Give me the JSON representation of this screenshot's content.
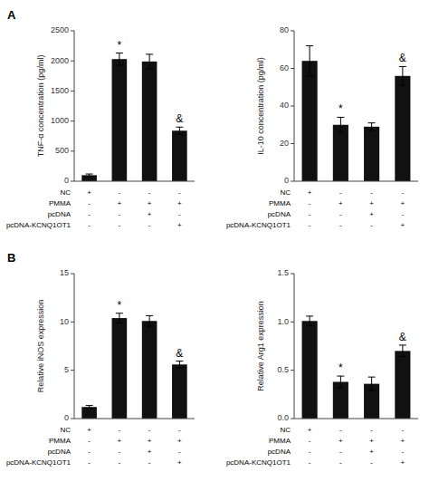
{
  "chart_data": [
    {
      "type": "bar",
      "panel_label": "A",
      "ylabel": "TNF-α concentration (pg/ml)",
      "categories": [
        null,
        null,
        null,
        null
      ],
      "values": [
        100,
        2030,
        1990,
        840
      ],
      "errors": [
        20,
        100,
        120,
        60
      ],
      "color": "#111111",
      "ylim": [
        0,
        2500
      ],
      "yticks": [
        0,
        500,
        1000,
        1500,
        2000,
        2500
      ],
      "annotations": [
        {
          "text": "*",
          "index": 1
        },
        {
          "text": "&",
          "index": 3
        }
      ],
      "table": [
        [
          "NC",
          "+",
          "-",
          "-",
          "-"
        ],
        [
          "PMMA",
          "-",
          "+",
          "+",
          "+"
        ],
        [
          "pcDNA",
          "-",
          "-",
          "+",
          "-"
        ],
        [
          "pcDNA-KCNQ1OT1",
          "-",
          "-",
          "-",
          "+"
        ]
      ]
    },
    {
      "type": "bar",
      "ylabel": "IL-10 concentration (pg/ml)",
      "categories": [
        null,
        null,
        null,
        null
      ],
      "values": [
        64,
        30,
        29,
        56
      ],
      "errors": [
        8,
        4,
        2,
        5
      ],
      "color": "#111111",
      "ylim": [
        0,
        80
      ],
      "yticks": [
        0,
        20,
        40,
        60,
        80
      ],
      "annotations": [
        {
          "text": "*",
          "index": 1
        },
        {
          "text": "&",
          "index": 3
        }
      ],
      "table": [
        [
          "NC",
          "+",
          "-",
          "-",
          "-"
        ],
        [
          "PMMA",
          "-",
          "+",
          "+",
          "+"
        ],
        [
          "pcDNA",
          "-",
          "-",
          "+",
          "-"
        ],
        [
          "pcDNA-KCNQ1OT1",
          "-",
          "-",
          "-",
          "+"
        ]
      ]
    },
    {
      "type": "bar",
      "panel_label": "B",
      "ylabel": "Relative iNOS expression",
      "categories": [
        null,
        null,
        null,
        null
      ],
      "values": [
        1.2,
        10.4,
        10.1,
        5.6
      ],
      "errors": [
        0.15,
        0.5,
        0.55,
        0.35
      ],
      "color": "#111111",
      "ylim": [
        0,
        15
      ],
      "yticks": [
        0,
        5,
        10,
        15
      ],
      "annotations": [
        {
          "text": "*",
          "index": 1
        },
        {
          "text": "&",
          "index": 3
        }
      ],
      "table": [
        [
          "NC",
          "+",
          "-",
          "-",
          "-"
        ],
        [
          "PMMA",
          "-",
          "+",
          "+",
          "+"
        ],
        [
          "pcDNA",
          "-",
          "-",
          "+",
          "-"
        ],
        [
          "pcDNA-KCNQ1OT1",
          "-",
          "-",
          "-",
          "+"
        ]
      ]
    },
    {
      "type": "bar",
      "ylabel": "Relative Arg1 expression",
      "categories": [
        null,
        null,
        null,
        null
      ],
      "values": [
        1.01,
        0.38,
        0.36,
        0.7
      ],
      "errors": [
        0.05,
        0.06,
        0.07,
        0.06
      ],
      "color": "#111111",
      "ylim": [
        0,
        1.5
      ],
      "yticks": [
        {
          "value": 0,
          "label": "0.0"
        },
        0.5,
        {
          "value": 1,
          "label": "1.0"
        },
        1.5
      ],
      "annotations": [
        {
          "text": "*",
          "index": 1
        },
        {
          "text": "&",
          "index": 3
        }
      ],
      "table": [
        [
          "NC",
          "+",
          "-",
          "-",
          "-"
        ],
        [
          "PMMA",
          "-",
          "+",
          "+",
          "+"
        ],
        [
          "pcDNA",
          "-",
          "-",
          "+",
          "-"
        ],
        [
          "pcDNA-KCNQ1OT1",
          "-",
          "-",
          "-",
          "+"
        ]
      ]
    }
  ]
}
